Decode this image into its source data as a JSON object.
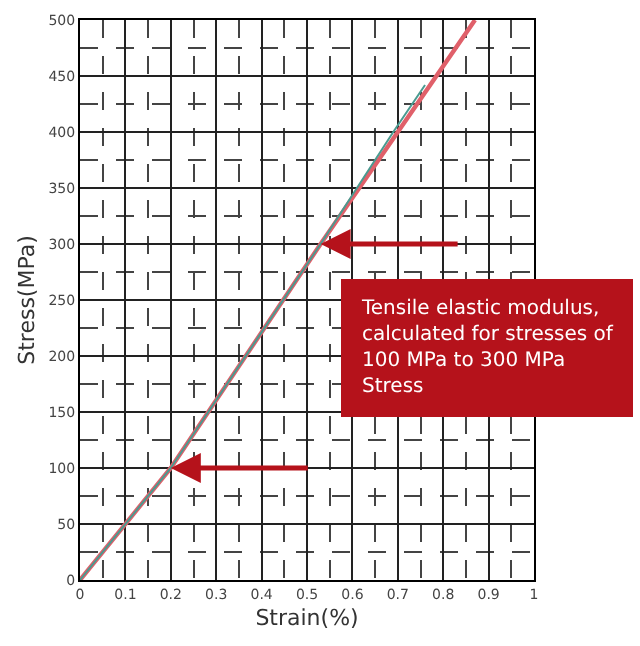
{
  "chart_data": {
    "type": "line",
    "xlabel": "Strain(%)",
    "ylabel": "Stress(MPa)",
    "xlim": [
      0,
      1
    ],
    "ylim": [
      0,
      500
    ],
    "xticks": [
      0,
      0.1,
      0.2,
      0.3,
      0.4,
      0.5,
      0.6,
      0.7,
      0.8,
      0.9,
      1
    ],
    "yticks": [
      0,
      50,
      100,
      150,
      200,
      250,
      300,
      350,
      400,
      450,
      500
    ],
    "grid": true,
    "marker": "none",
    "line_style": "solid",
    "series": [
      {
        "color": "#e0606a",
        "x": [
          0,
          0.2,
          0.53,
          0.7,
          0.87
        ],
        "values": [
          0,
          100,
          300,
          400,
          500
        ]
      },
      {
        "color": "#4a9a90",
        "x": [
          0,
          0.2,
          0.53,
          0.69,
          0.76
        ],
        "values": [
          0,
          100,
          300,
          400,
          442
        ]
      }
    ],
    "annotations": [
      "Tensile elastic modulus,\ncalculated for stresses of\n100 MPa to 300 MPa\nStress"
    ]
  }
}
